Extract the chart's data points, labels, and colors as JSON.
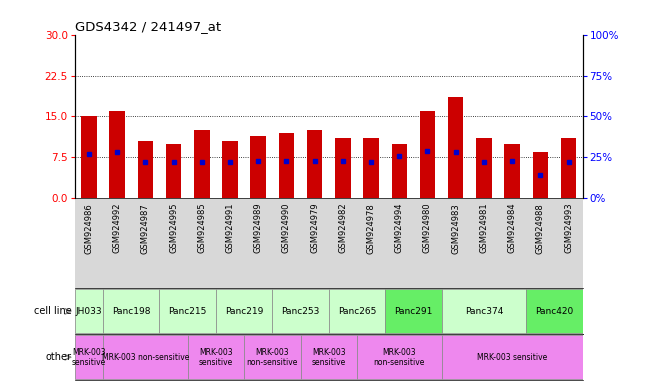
{
  "title": "GDS4342 / 241497_at",
  "samples": [
    "GSM924986",
    "GSM924992",
    "GSM924987",
    "GSM924995",
    "GSM924985",
    "GSM924991",
    "GSM924989",
    "GSM924990",
    "GSM924979",
    "GSM924982",
    "GSM924978",
    "GSM924994",
    "GSM924980",
    "GSM924983",
    "GSM924981",
    "GSM924984",
    "GSM924988",
    "GSM924993"
  ],
  "counts": [
    15.0,
    16.0,
    10.5,
    10.0,
    12.5,
    10.5,
    11.5,
    12.0,
    12.5,
    11.0,
    11.0,
    10.0,
    16.0,
    18.5,
    11.0,
    10.0,
    8.5,
    11.0
  ],
  "percentile_ranks": [
    27,
    28,
    22,
    22,
    22,
    22,
    23,
    23,
    23,
    23,
    22,
    26,
    29,
    28,
    22,
    23,
    14,
    22
  ],
  "cell_lines": [
    {
      "name": "JH033",
      "start": 0,
      "end": 0,
      "color": "#ccffcc"
    },
    {
      "name": "Panc198",
      "start": 1,
      "end": 2,
      "color": "#ccffcc"
    },
    {
      "name": "Panc215",
      "start": 3,
      "end": 4,
      "color": "#ccffcc"
    },
    {
      "name": "Panc219",
      "start": 5,
      "end": 6,
      "color": "#ccffcc"
    },
    {
      "name": "Panc253",
      "start": 7,
      "end": 8,
      "color": "#ccffcc"
    },
    {
      "name": "Panc265",
      "start": 9,
      "end": 10,
      "color": "#ccffcc"
    },
    {
      "name": "Panc291",
      "start": 11,
      "end": 12,
      "color": "#66ee66"
    },
    {
      "name": "Panc374",
      "start": 13,
      "end": 15,
      "color": "#ccffcc"
    },
    {
      "name": "Panc420",
      "start": 16,
      "end": 17,
      "color": "#66ee66"
    }
  ],
  "others": [
    {
      "name": "MRK-003\nsensitive",
      "start": 0,
      "end": 0,
      "color": "#ee88ee"
    },
    {
      "name": "MRK-003 non-sensitive",
      "start": 1,
      "end": 3,
      "color": "#ee88ee"
    },
    {
      "name": "MRK-003\nsensitive",
      "start": 4,
      "end": 5,
      "color": "#ee88ee"
    },
    {
      "name": "MRK-003\nnon-sensitive",
      "start": 6,
      "end": 7,
      "color": "#ee88ee"
    },
    {
      "name": "MRK-003\nsensitive",
      "start": 8,
      "end": 9,
      "color": "#ee88ee"
    },
    {
      "name": "MRK-003\nnon-sensitive",
      "start": 10,
      "end": 12,
      "color": "#ee88ee"
    },
    {
      "name": "MRK-003 sensitive",
      "start": 13,
      "end": 17,
      "color": "#ee88ee"
    }
  ],
  "ylim_left": [
    0,
    30
  ],
  "ylim_right": [
    0,
    100
  ],
  "yticks_left": [
    0,
    7.5,
    15,
    22.5,
    30
  ],
  "yticks_right": [
    0,
    25,
    50,
    75,
    100
  ],
  "bar_color": "#cc0000",
  "dot_color": "#0000cc",
  "bg_color": "#ffffff",
  "tick_bg_color": "#d8d8d8"
}
